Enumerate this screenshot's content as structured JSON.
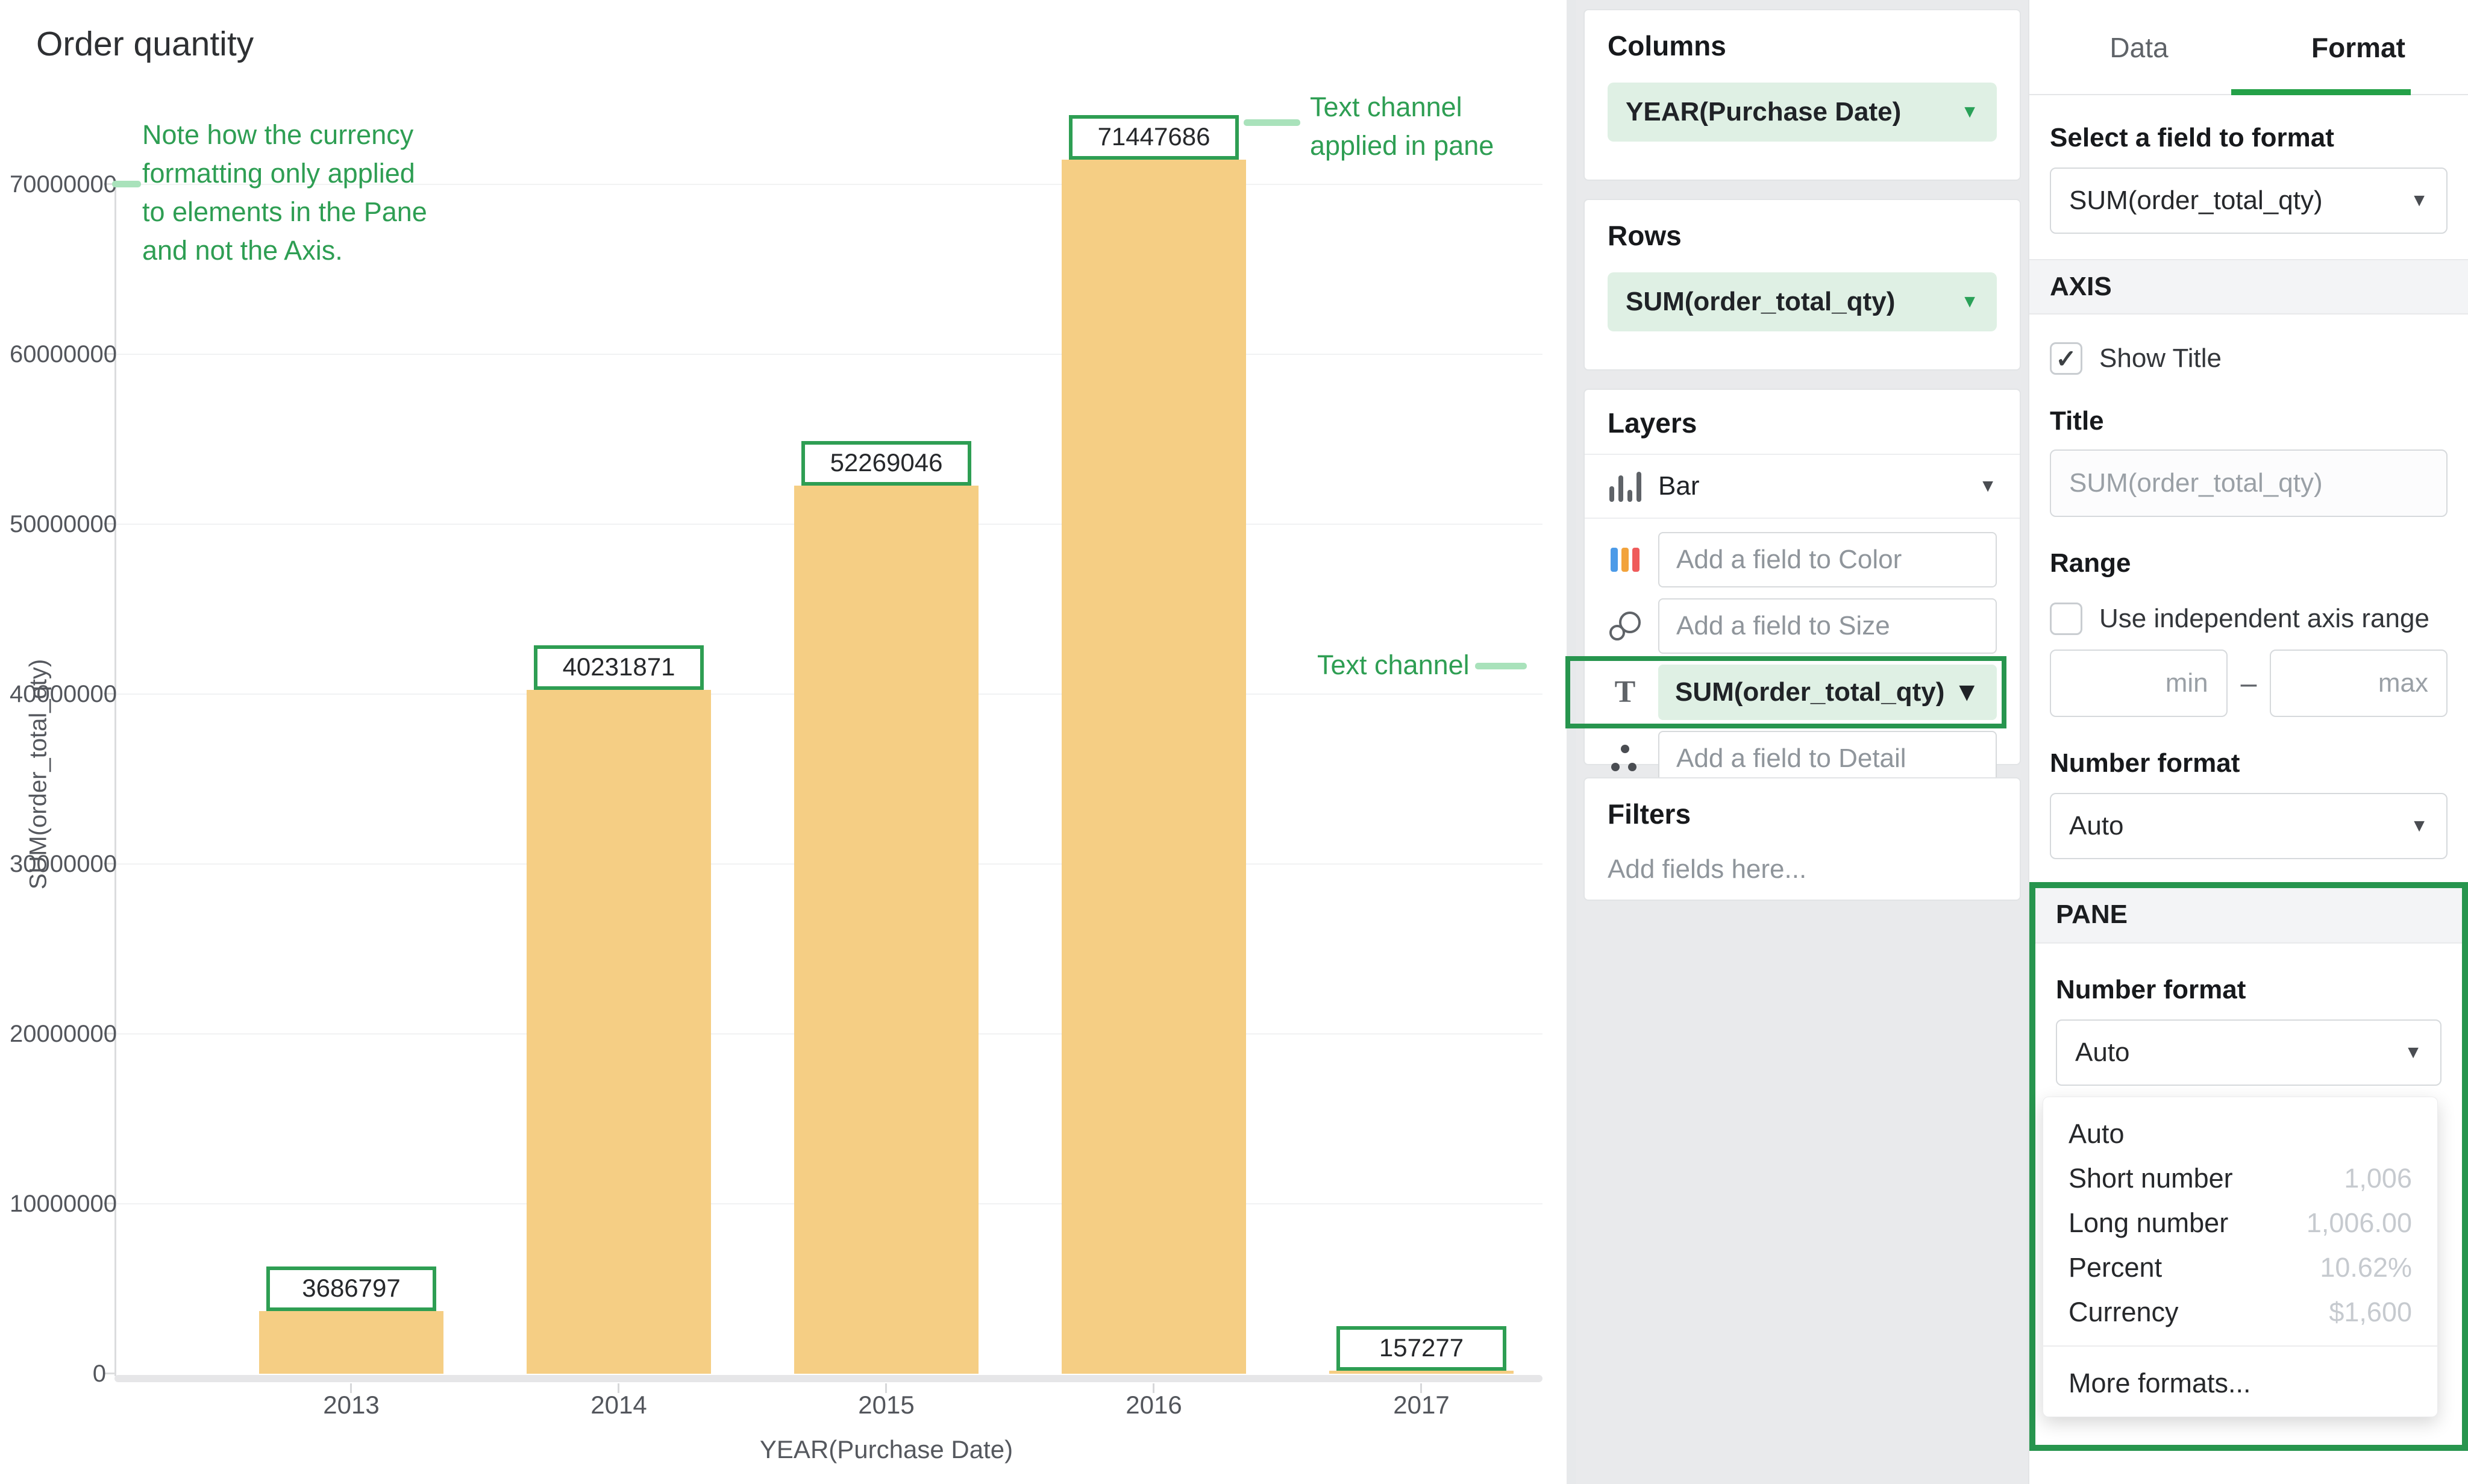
{
  "chart_data": {
    "type": "bar",
    "title": "Order quantity",
    "xlabel": "YEAR(Purchase Date)",
    "ylabel": "SUM(order_total_qty)",
    "categories": [
      "2013",
      "2014",
      "2015",
      "2016",
      "2017"
    ],
    "values": [
      3686797,
      40231871,
      52269046,
      71447686,
      157277
    ],
    "y_ticks": [
      0,
      10000000,
      20000000,
      30000000,
      40000000,
      50000000,
      60000000,
      70000000
    ],
    "ylim": [
      0,
      73000000
    ],
    "bar_color": "#F5CE84",
    "label_box_border": "#2E9E53",
    "grid": "horizontal"
  },
  "annotations": {
    "accent_green": "#2E9E53",
    "light_green": "#A9E2BB",
    "note": [
      "Note how the currency",
      "formatting only applied",
      "to elements in the Pane",
      "and not the Axis."
    ],
    "pane_note": [
      "Text channel",
      "applied in pane"
    ],
    "text_channel": "Text channel"
  },
  "columns_panel": {
    "title": "Columns",
    "field": "YEAR(Purchase Date)"
  },
  "rows_panel": {
    "title": "Rows",
    "field": "SUM(order_total_qty)"
  },
  "layers_panel": {
    "title": "Layers",
    "layer_type": "Bar",
    "color_placeholder": "Add a field to Color",
    "size_placeholder": "Add a field to Size",
    "text_field": "SUM(order_total_qty)",
    "detail_placeholder": "Add a field to Detail"
  },
  "filters_panel": {
    "title": "Filters",
    "placeholder": "Add fields here..."
  },
  "format_panel": {
    "tabs": {
      "data": "Data",
      "format": "Format"
    },
    "select_field_label": "Select a field to format",
    "selected_field": "SUM(order_total_qty)",
    "axis": {
      "header": "AXIS",
      "show_title": "Show Title",
      "show_title_checked": "✓",
      "title_label": "Title",
      "title_placeholder": "SUM(order_total_qty)",
      "range_label": "Range",
      "independent_range": "Use independent axis range",
      "min_placeholder": "min",
      "max_placeholder": "max",
      "range_separator": "–",
      "number_format_label": "Number format",
      "number_format_value": "Auto"
    },
    "pane": {
      "header": "PANE",
      "number_format_label": "Number format",
      "number_format_value": "Auto",
      "menu": [
        {
          "label": "Auto",
          "example": ""
        },
        {
          "label": "Short number",
          "example": "1,006"
        },
        {
          "label": "Long number",
          "example": "1,006.00"
        },
        {
          "label": "Percent",
          "example": "10.62%"
        },
        {
          "label": "Currency",
          "example": "$1,600"
        }
      ],
      "more_formats": "More formats..."
    }
  }
}
